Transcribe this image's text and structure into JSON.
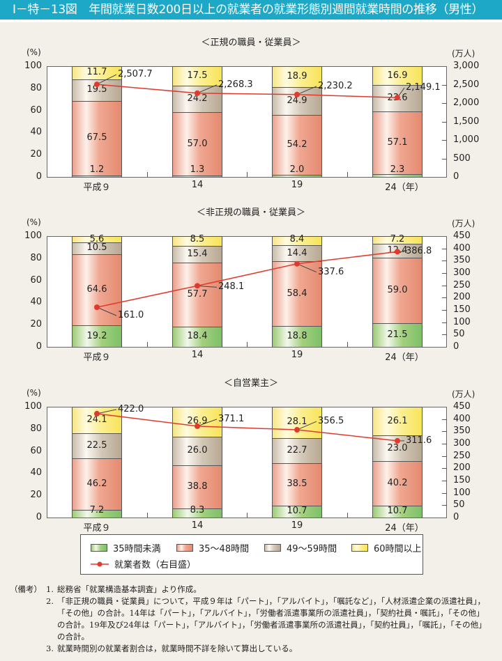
{
  "title": "Ⅰ－特－13図　年間就業日数200日以上の就業者の就業形態別週間就業時間の推移（男性）",
  "legend": {
    "items": [
      {
        "label": "35時間未満",
        "color": "#8cc66e"
      },
      {
        "label": "35～48時間",
        "color": "#e98d74"
      },
      {
        "label": "49～59時間",
        "color": "#bfb29e"
      },
      {
        "label": "60時間以上",
        "color": "#f8e45a"
      }
    ],
    "line_label": "就業者数（右目盛）",
    "line_color": "#e03a2e"
  },
  "notes": {
    "prefix": "（備考）",
    "items": [
      {
        "num": "1.",
        "text": "総務省「就業構造基本調査」より作成。"
      },
      {
        "num": "2.",
        "text": "「非正規の職員・従業員」について，平成９年は「パート」，「アルバイト」，「嘱託など」，「人材派遣企業の派遣社員」，「その他」の合計。14年は「パート」，「アルバイト」，「労働者派遣事業所の派遣社員」，「契約社員・嘱託」，「その他」の合計。19年及び24年は「パート」，「アルバイト」，「労働者派遣事業所の派遣社員」，「契約社員」，「嘱託」，「その他」の合計。"
      },
      {
        "num": "3.",
        "text": "就業時間別の就業者割合は，就業時間不詳を除いて算出している。"
      }
    ]
  },
  "chart_data": [
    {
      "type": "bar",
      "stacked": true,
      "title": "＜正規の職員・従業員＞",
      "categories": [
        "平成９",
        "14",
        "19",
        "24（年）"
      ],
      "ylabel": "(%)",
      "ylim": [
        0,
        100
      ],
      "yticks": [
        "0",
        "20",
        "40",
        "60",
        "80",
        "100"
      ],
      "y2label": "(万人)",
      "y2lim": [
        0,
        3000
      ],
      "y2ticks": [
        "0",
        "500",
        "1,000",
        "1,500",
        "2,000",
        "2,500",
        "3,000"
      ],
      "series": [
        {
          "name": "35時間未満",
          "values": [
            1.2,
            1.3,
            2.0,
            2.3
          ]
        },
        {
          "name": "35～48時間",
          "values": [
            67.5,
            57.0,
            54.2,
            57.1
          ]
        },
        {
          "name": "49～59時間",
          "values": [
            19.5,
            24.2,
            24.9,
            23.6
          ]
        },
        {
          "name": "60時間以上",
          "values": [
            11.7,
            17.5,
            18.9,
            16.9
          ]
        }
      ],
      "line": {
        "name": "就業者数（右目盛）",
        "values": [
          2507.7,
          2268.3,
          2230.2,
          2149.1
        ],
        "labels": [
          "2,507.7",
          "2,268.3",
          "2,230.2",
          "2,149.1"
        ]
      }
    },
    {
      "type": "bar",
      "stacked": true,
      "title": "＜非正規の職員・従業員＞",
      "categories": [
        "平成９",
        "14",
        "19",
        "24（年）"
      ],
      "ylabel": "(%)",
      "ylim": [
        0,
        100
      ],
      "yticks": [
        "0",
        "20",
        "40",
        "60",
        "80",
        "100"
      ],
      "y2label": "(万人)",
      "y2lim": [
        0,
        450
      ],
      "y2ticks": [
        "0",
        "50",
        "100",
        "150",
        "200",
        "250",
        "300",
        "350",
        "400",
        "450"
      ],
      "series": [
        {
          "name": "35時間未満",
          "values": [
            19.2,
            18.4,
            18.8,
            21.5
          ]
        },
        {
          "name": "35～48時間",
          "values": [
            64.6,
            57.7,
            58.4,
            59.0
          ]
        },
        {
          "name": "49～59時間",
          "values": [
            10.5,
            15.4,
            14.4,
            12.4
          ]
        },
        {
          "name": "60時間以上",
          "values": [
            5.6,
            8.5,
            8.4,
            7.2
          ]
        }
      ],
      "line": {
        "name": "就業者数（右目盛）",
        "values": [
          161.0,
          248.1,
          337.6,
          386.8
        ],
        "labels": [
          "161.0",
          "248.1",
          "337.6",
          "386.8"
        ]
      }
    },
    {
      "type": "bar",
      "stacked": true,
      "title": "＜自営業主＞",
      "categories": [
        "平成９",
        "14",
        "19",
        "24（年）"
      ],
      "ylabel": "(%)",
      "ylim": [
        0,
        100
      ],
      "yticks": [
        "0",
        "20",
        "40",
        "60",
        "80",
        "100"
      ],
      "y2label": "(万人)",
      "y2lim": [
        0,
        450
      ],
      "y2ticks": [
        "0",
        "50",
        "100",
        "150",
        "200",
        "250",
        "300",
        "350",
        "400",
        "450"
      ],
      "series": [
        {
          "name": "35時間未満",
          "values": [
            7.2,
            8.3,
            10.7,
            10.7
          ]
        },
        {
          "name": "35～48時間",
          "values": [
            46.2,
            38.8,
            38.5,
            40.2
          ]
        },
        {
          "name": "49～59時間",
          "values": [
            22.5,
            26.0,
            22.7,
            23.0
          ]
        },
        {
          "name": "60時間以上",
          "values": [
            24.1,
            26.9,
            28.1,
            26.1
          ]
        }
      ],
      "line": {
        "name": "就業者数（右目盛）",
        "values": [
          422.0,
          371.1,
          356.5,
          311.6
        ],
        "labels": [
          "422.0",
          "371.1",
          "356.5",
          "311.6"
        ]
      }
    }
  ]
}
